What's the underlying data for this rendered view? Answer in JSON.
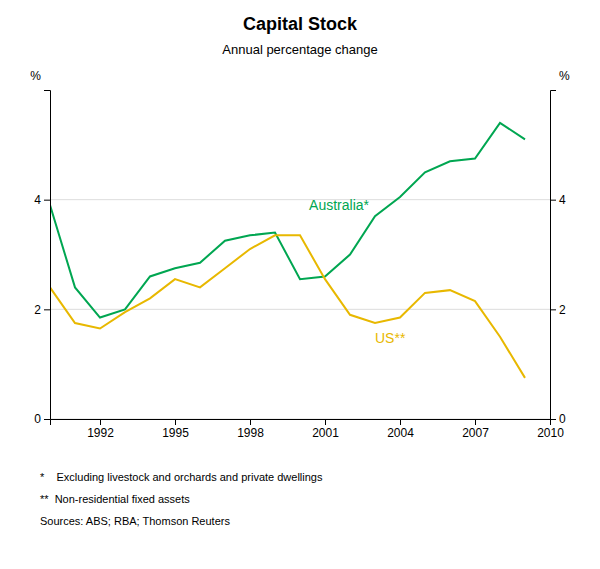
{
  "chart_data": {
    "type": "line",
    "title": "Capital Stock",
    "subtitle": "Annual percentage change",
    "x": [
      1990,
      1991,
      1992,
      1993,
      1994,
      1995,
      1996,
      1997,
      1998,
      1999,
      2000,
      2001,
      2002,
      2003,
      2004,
      2005,
      2006,
      2007,
      2008,
      2009
    ],
    "series": [
      {
        "name": "Australia*",
        "color": "#00a651",
        "values": [
          3.9,
          2.4,
          1.85,
          2.0,
          2.6,
          2.75,
          2.85,
          3.25,
          3.35,
          3.4,
          2.55,
          2.6,
          3.0,
          3.7,
          4.05,
          4.5,
          4.7,
          4.75,
          5.4,
          5.1
        ]
      },
      {
        "name": "US**",
        "color": "#e8b800",
        "values": [
          2.4,
          1.75,
          1.65,
          1.95,
          2.2,
          2.55,
          2.4,
          2.75,
          3.1,
          3.35,
          3.35,
          2.55,
          1.9,
          1.75,
          1.85,
          2.3,
          2.35,
          2.15,
          1.5,
          0.75
        ]
      }
    ],
    "xlim": [
      1990,
      2010
    ],
    "xticks": [
      1992,
      1995,
      1998,
      2001,
      2004,
      2007,
      2010
    ],
    "ylim": [
      0,
      6
    ],
    "yticks": [
      0,
      2,
      4
    ],
    "y2lim": [
      0,
      6
    ],
    "y2ticks": [
      0,
      2,
      4
    ],
    "y_label": "%",
    "y2_label": "%",
    "grid": true,
    "annotations": [
      "*    Excluding livestock and orchards and private dwellings",
      "**  Non-residential fixed assets",
      "Sources: ABS; RBA; Thomson Reuters"
    ]
  }
}
